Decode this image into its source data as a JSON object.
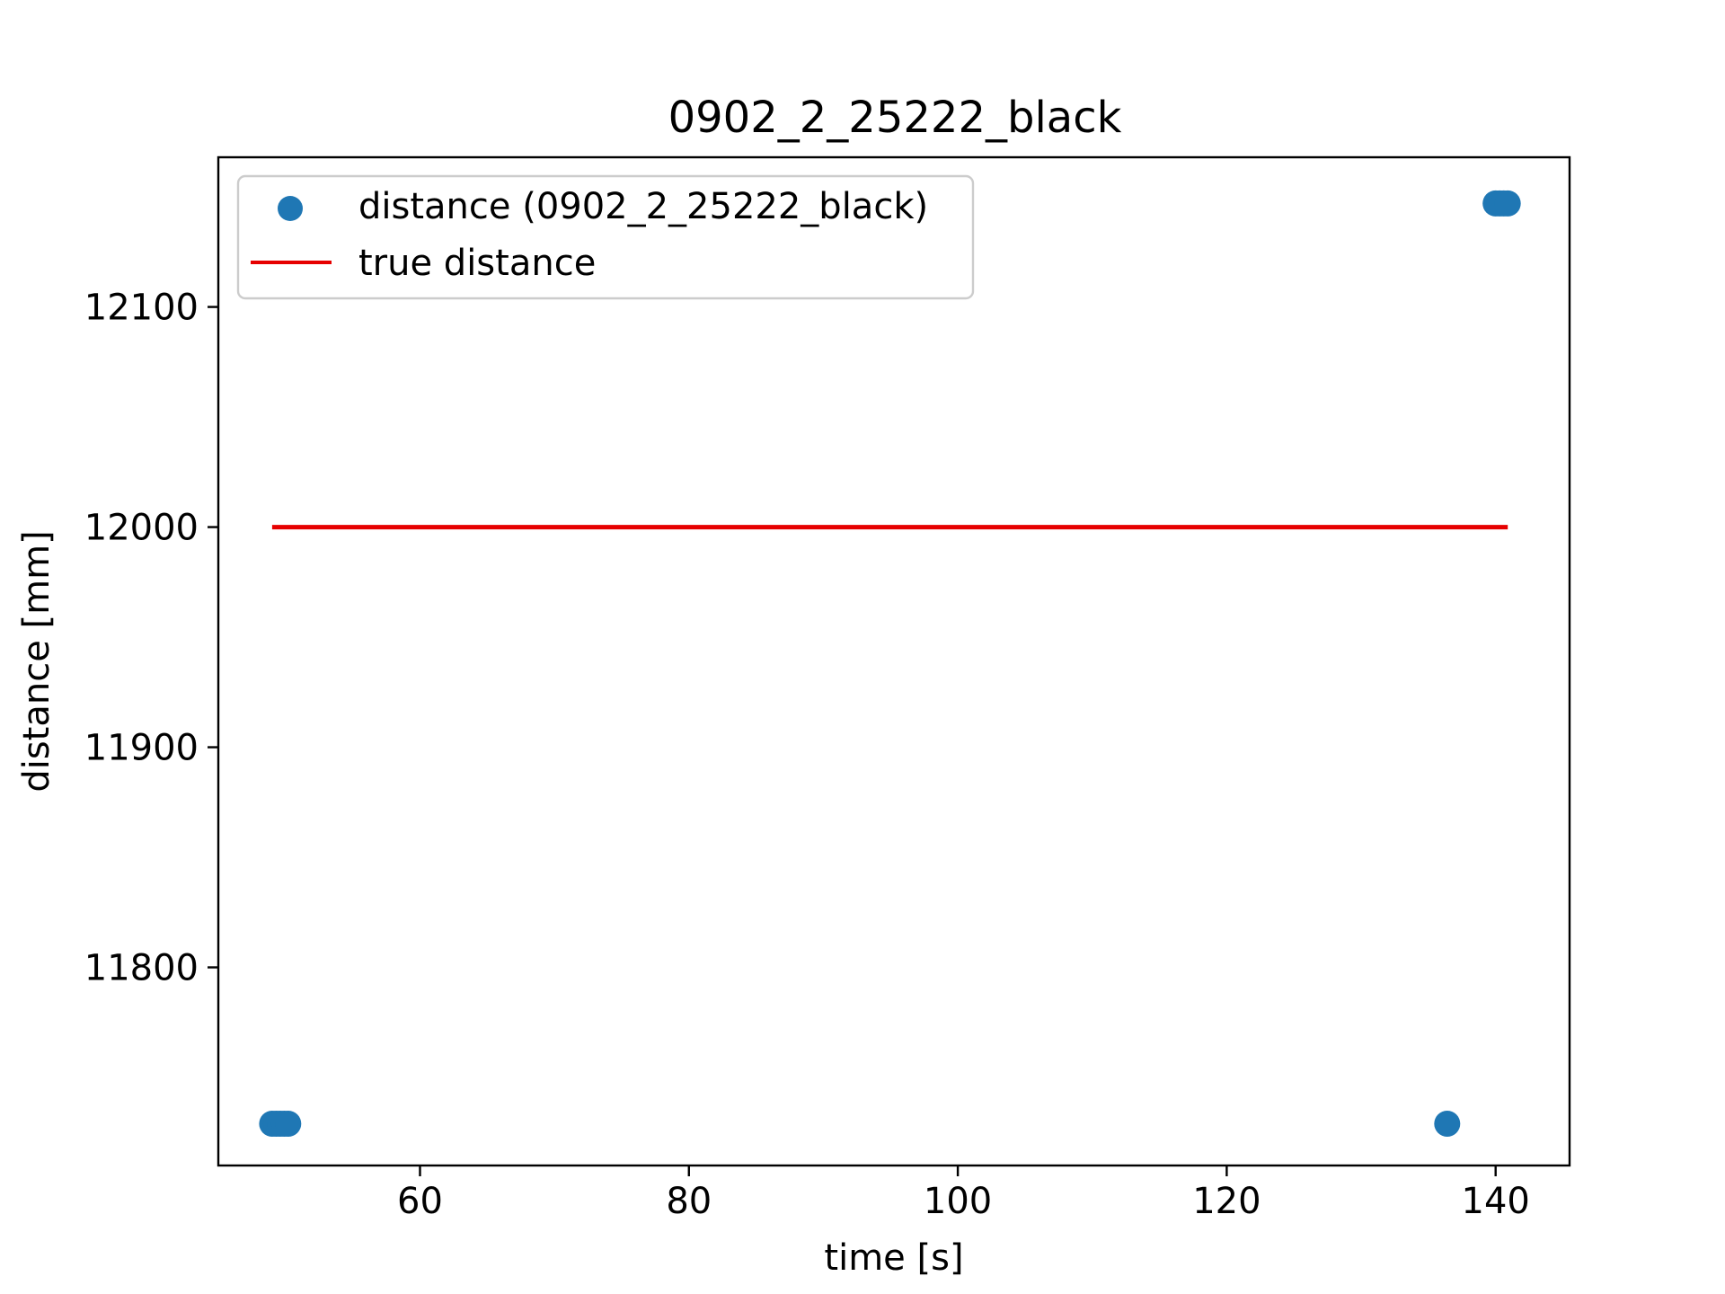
{
  "chart_data": {
    "type": "scatter",
    "title": "0902_2_25222_black",
    "xlabel": "time [s]",
    "ylabel": "distance [mm]",
    "xlim": [
      45,
      145.5
    ],
    "ylim": [
      11710,
      12168
    ],
    "xticks": [
      60,
      80,
      100,
      120,
      140
    ],
    "yticks": [
      11800,
      11900,
      12000,
      12100
    ],
    "grid": false,
    "legend_position": "top-left",
    "series": [
      {
        "name": "distance (0902_2_25222_black)",
        "type": "scatter",
        "color": "#1f77b4",
        "points": [
          {
            "x": 49.0,
            "y": 11729
          },
          {
            "x": 49.3,
            "y": 11729
          },
          {
            "x": 49.6,
            "y": 11729
          },
          {
            "x": 49.9,
            "y": 11729
          },
          {
            "x": 50.2,
            "y": 11729
          },
          {
            "x": 136.4,
            "y": 11729
          },
          {
            "x": 140.0,
            "y": 12147
          },
          {
            "x": 140.3,
            "y": 12147
          },
          {
            "x": 140.6,
            "y": 12147
          },
          {
            "x": 140.9,
            "y": 12147
          }
        ]
      },
      {
        "name": "true distance",
        "type": "line",
        "color": "#e60000",
        "points": [
          {
            "x": 49.0,
            "y": 12000
          },
          {
            "x": 140.9,
            "y": 12000
          }
        ]
      }
    ]
  }
}
